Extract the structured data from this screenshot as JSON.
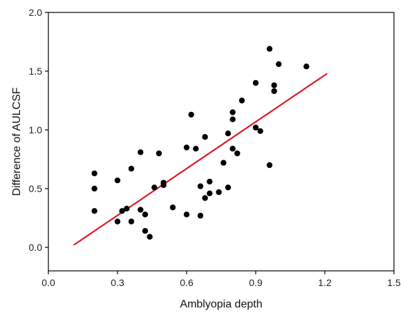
{
  "chart_data": {
    "type": "scatter",
    "xlabel": "Amblyopia depth",
    "ylabel": "Difference of AULCSF",
    "xlim": [
      0.0,
      1.5
    ],
    "ylim": [
      -0.2,
      2.0
    ],
    "x_ticks": [
      "0.0",
      "0.3",
      "0.6",
      "0.9",
      "1.2",
      "1.5"
    ],
    "y_ticks": [
      "0.0",
      "0.5",
      "1.0",
      "1.5",
      "2.0"
    ],
    "grid": false,
    "legend": "none",
    "series": [
      {
        "marker": "filled-circle",
        "color": "#000000",
        "points": [
          [
            0.2,
            0.63
          ],
          [
            0.2,
            0.5
          ],
          [
            0.2,
            0.31
          ],
          [
            0.3,
            0.57
          ],
          [
            0.3,
            0.22
          ],
          [
            0.32,
            0.31
          ],
          [
            0.34,
            0.33
          ],
          [
            0.36,
            0.67
          ],
          [
            0.36,
            0.22
          ],
          [
            0.4,
            0.81
          ],
          [
            0.4,
            0.32
          ],
          [
            0.42,
            0.28
          ],
          [
            0.42,
            0.14
          ],
          [
            0.44,
            0.09
          ],
          [
            0.46,
            0.51
          ],
          [
            0.48,
            0.8
          ],
          [
            0.5,
            0.53
          ],
          [
            0.5,
            0.55
          ],
          [
            0.54,
            0.34
          ],
          [
            0.6,
            0.85
          ],
          [
            0.6,
            0.28
          ],
          [
            0.62,
            1.13
          ],
          [
            0.64,
            0.84
          ],
          [
            0.66,
            0.52
          ],
          [
            0.66,
            0.27
          ],
          [
            0.68,
            0.94
          ],
          [
            0.68,
            0.42
          ],
          [
            0.7,
            0.56
          ],
          [
            0.7,
            0.46
          ],
          [
            0.74,
            0.47
          ],
          [
            0.76,
            0.72
          ],
          [
            0.78,
            0.97
          ],
          [
            0.78,
            0.51
          ],
          [
            0.8,
            1.15
          ],
          [
            0.8,
            1.09
          ],
          [
            0.8,
            0.84
          ],
          [
            0.82,
            0.8
          ],
          [
            0.84,
            1.25
          ],
          [
            0.9,
            1.4
          ],
          [
            0.9,
            1.02
          ],
          [
            0.92,
            0.99
          ],
          [
            0.96,
            1.69
          ],
          [
            0.96,
            0.7
          ],
          [
            0.98,
            1.38
          ],
          [
            0.98,
            1.33
          ],
          [
            1.0,
            1.56
          ],
          [
            1.12,
            1.54
          ]
        ]
      }
    ],
    "fit_line": {
      "color": "#e0161f",
      "x": [
        0.11,
        1.21
      ],
      "y": [
        0.02,
        1.48
      ]
    }
  }
}
